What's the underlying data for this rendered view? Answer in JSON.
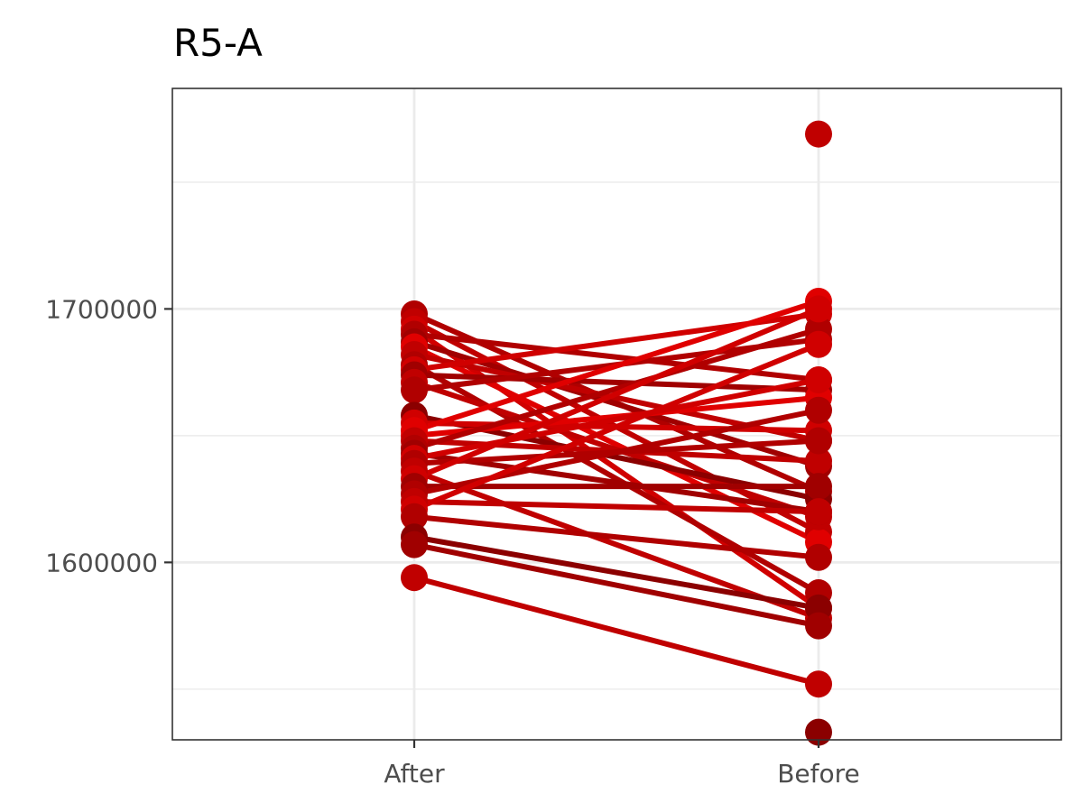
{
  "chart_data": {
    "type": "line",
    "title": "R5-A",
    "xlabel": "",
    "ylabel": "",
    "categories": [
      "After",
      "Before"
    ],
    "y_ticks": [
      "1600000",
      "1700000"
    ],
    "ylim": [
      1530000,
      1787000
    ],
    "grid": true,
    "legend": "none",
    "colors": {
      "panel_border": "#333333",
      "grid": "#ebebeb",
      "palette": [
        "#8b0000",
        "#a00000",
        "#b00000",
        "#c00000",
        "#d00000",
        "#e00000"
      ]
    },
    "pairs": [
      {
        "after": 1698000,
        "before": 1628000,
        "shade": 2
      },
      {
        "after": 1695000,
        "before": 1612000,
        "shade": 3
      },
      {
        "after": 1692000,
        "before": 1582000,
        "shade": 4
      },
      {
        "after": 1690000,
        "before": 1672000,
        "shade": 2
      },
      {
        "after": 1687000,
        "before": 1638000,
        "shade": 1
      },
      {
        "after": 1685000,
        "before": 1608000,
        "shade": 5
      },
      {
        "after": 1682000,
        "before": 1648000,
        "shade": 3
      },
      {
        "after": 1678000,
        "before": 1588000,
        "shade": 2
      },
      {
        "after": 1676000,
        "before": 1698000,
        "shade": 4
      },
      {
        "after": 1674000,
        "before": 1668000,
        "shade": 1
      },
      {
        "after": 1671000,
        "before": 1618000,
        "shade": 3
      },
      {
        "after": 1668000,
        "before": 1688000,
        "shade": 2
      },
      {
        "after": 1658000,
        "before": 1625000,
        "shade": 0
      },
      {
        "after": 1655000,
        "before": 1652000,
        "shade": 4
      },
      {
        "after": 1652000,
        "before": 1703000,
        "shade": 5
      },
      {
        "after": 1650000,
        "before": 1665000,
        "shade": 5
      },
      {
        "after": 1648000,
        "before": 1640000,
        "shade": 3
      },
      {
        "after": 1645000,
        "before": 1692000,
        "shade": 2
      },
      {
        "after": 1643000,
        "before": 1620000,
        "shade": 1
      },
      {
        "after": 1641000,
        "before": 1672000,
        "shade": 4
      },
      {
        "after": 1639000,
        "before": 1648000,
        "shade": 2
      },
      {
        "after": 1636000,
        "before": 1578000,
        "shade": 3
      },
      {
        "after": 1633000,
        "before": 1700000,
        "shade": 4
      },
      {
        "after": 1630000,
        "before": 1630000,
        "shade": 1
      },
      {
        "after": 1627000,
        "before": 1660000,
        "shade": 2
      },
      {
        "after": 1624000,
        "before": 1620000,
        "shade": 3
      },
      {
        "after": 1621000,
        "before": 1686000,
        "shade": 4
      },
      {
        "after": 1618000,
        "before": 1602000,
        "shade": 2
      },
      {
        "after": 1610000,
        "before": 1582000,
        "shade": 0
      },
      {
        "after": 1607000,
        "before": 1575000,
        "shade": 1
      },
      {
        "after": 1594000,
        "before": 1552000,
        "shade": 3
      }
    ],
    "before_only": [
      {
        "before": 1769000,
        "shade": 3
      },
      {
        "before": 1533000,
        "shade": 0
      }
    ]
  }
}
